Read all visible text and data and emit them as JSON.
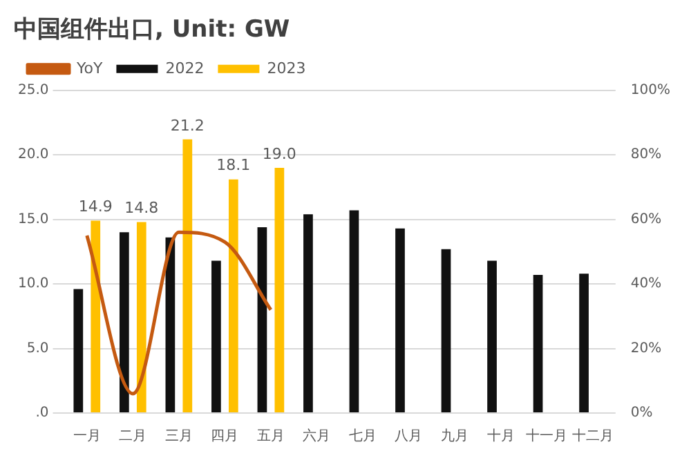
{
  "chart_data": {
    "type": "bar",
    "title": "中国组件出口, Unit: GW",
    "categories": [
      "一月",
      "二月",
      "三月",
      "四月",
      "五月",
      "六月",
      "七月",
      "八月",
      "九月",
      "十月",
      "十一月",
      "十二月"
    ],
    "series": [
      {
        "name": "2022",
        "color": "#111111",
        "values": [
          9.6,
          14.0,
          13.6,
          11.8,
          14.4,
          15.4,
          15.7,
          14.3,
          12.7,
          11.8,
          10.7,
          10.8
        ]
      },
      {
        "name": "2023",
        "color": "#ffc000",
        "values": [
          14.9,
          14.8,
          21.2,
          18.1,
          19.0,
          null,
          null,
          null,
          null,
          null,
          null,
          null
        ],
        "value_labels": [
          "14.9",
          "14.8",
          "21.2",
          "18.1",
          "19.0",
          null,
          null,
          null,
          null,
          null,
          null,
          null
        ]
      },
      {
        "name": "YoY",
        "type": "line",
        "axis": "y2",
        "color": "#c55a11",
        "values": [
          55,
          6,
          56,
          53,
          32,
          null,
          null,
          null,
          null,
          null,
          null,
          null
        ]
      }
    ],
    "ylim": [
      0,
      25
    ],
    "yticks": [
      {
        "value": 0,
        "label": ".0"
      },
      {
        "value": 5,
        "label": "5.0"
      },
      {
        "value": 10,
        "label": "10.0"
      },
      {
        "value": 15,
        "label": "15.0"
      },
      {
        "value": 20,
        "label": "20.0"
      },
      {
        "value": 25,
        "label": "25.0"
      }
    ],
    "y2lim": [
      0,
      100
    ],
    "y2ticks": [
      {
        "value": 0,
        "label": "0%"
      },
      {
        "value": 20,
        "label": "20%"
      },
      {
        "value": 40,
        "label": "40%"
      },
      {
        "value": 60,
        "label": "60%"
      },
      {
        "value": 80,
        "label": "80%"
      },
      {
        "value": 100,
        "label": "100%"
      }
    ],
    "grid": "y",
    "legend": "top left",
    "marker": "none"
  }
}
